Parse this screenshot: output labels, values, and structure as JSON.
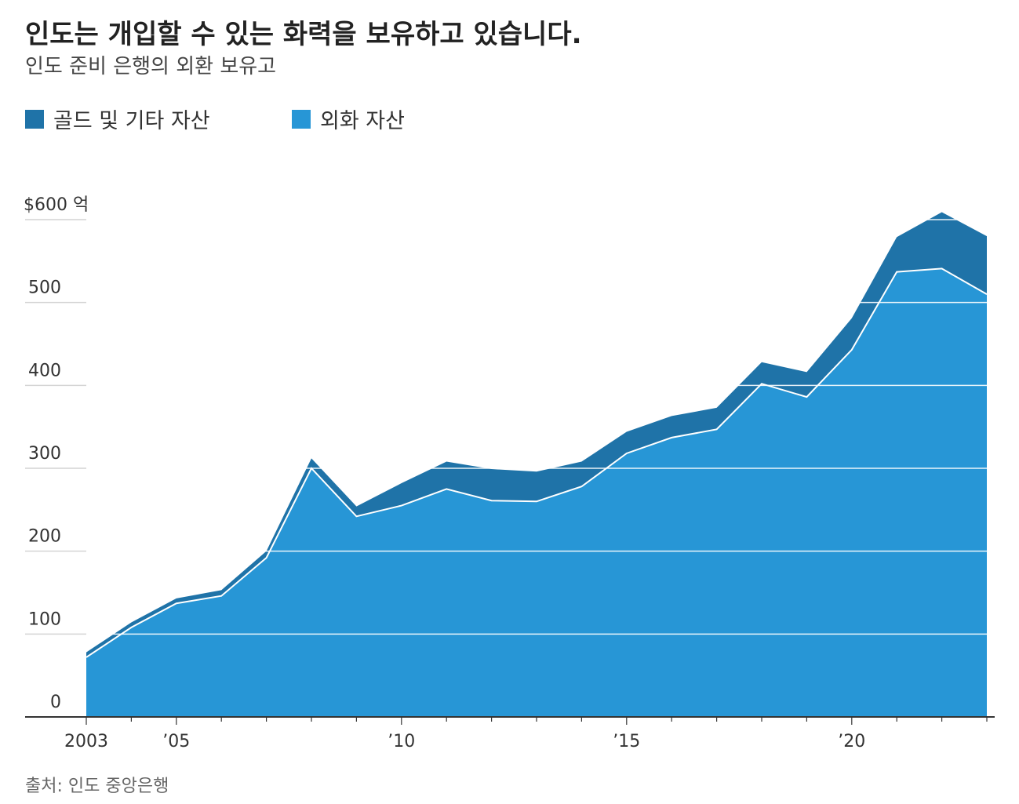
{
  "header": {
    "title": "인도는 개입할 수 있는 화력을 보유하고 있습니다.",
    "subtitle": "인도 준비 은행의 외환 보유고"
  },
  "legend": {
    "items": [
      {
        "label": "골드 및 기타 자산",
        "color": "#1f73a8"
      },
      {
        "label": "외화 자산",
        "color": "#2796d6"
      }
    ]
  },
  "source": "출처: 인도 중앙은행",
  "chart_data": {
    "type": "area",
    "stacked": true,
    "x": [
      2003,
      2004,
      2005,
      2006,
      2007,
      2008,
      2009,
      2010,
      2011,
      2012,
      2013,
      2014,
      2015,
      2016,
      2017,
      2018,
      2019,
      2020,
      2021,
      2022,
      2023
    ],
    "series": [
      {
        "name": "외화 자산",
        "color": "#2796d6",
        "values": [
          72,
          108,
          137,
          146,
          192,
          300,
          242,
          255,
          275,
          261,
          260,
          278,
          318,
          337,
          347,
          402,
          386,
          443,
          537,
          541,
          510
        ]
      },
      {
        "name": "골드 및 기타 자산",
        "color": "#1f73a8",
        "values": [
          6,
          6,
          6,
          7,
          8,
          12,
          12,
          27,
          33,
          38,
          36,
          30,
          26,
          26,
          26,
          26,
          30,
          38,
          42,
          68,
          70
        ]
      }
    ],
    "y_ticks": [
      {
        "value": 0,
        "label": "0"
      },
      {
        "value": 100,
        "label": "100"
      },
      {
        "value": 200,
        "label": "200"
      },
      {
        "value": 300,
        "label": "300"
      },
      {
        "value": 400,
        "label": "400"
      },
      {
        "value": 500,
        "label": "500"
      },
      {
        "value": 600,
        "label": "$600 억"
      }
    ],
    "x_ticks": [
      {
        "value": 2003,
        "label": "2003"
      },
      {
        "value": 2005,
        "label": "’05"
      },
      {
        "value": 2010,
        "label": "’10"
      },
      {
        "value": 2015,
        "label": "’15"
      },
      {
        "value": 2020,
        "label": "’20"
      }
    ],
    "xlim": [
      2003,
      2023
    ],
    "ylim": [
      0,
      600
    ],
    "grid": true,
    "legend_position": "top-left"
  }
}
